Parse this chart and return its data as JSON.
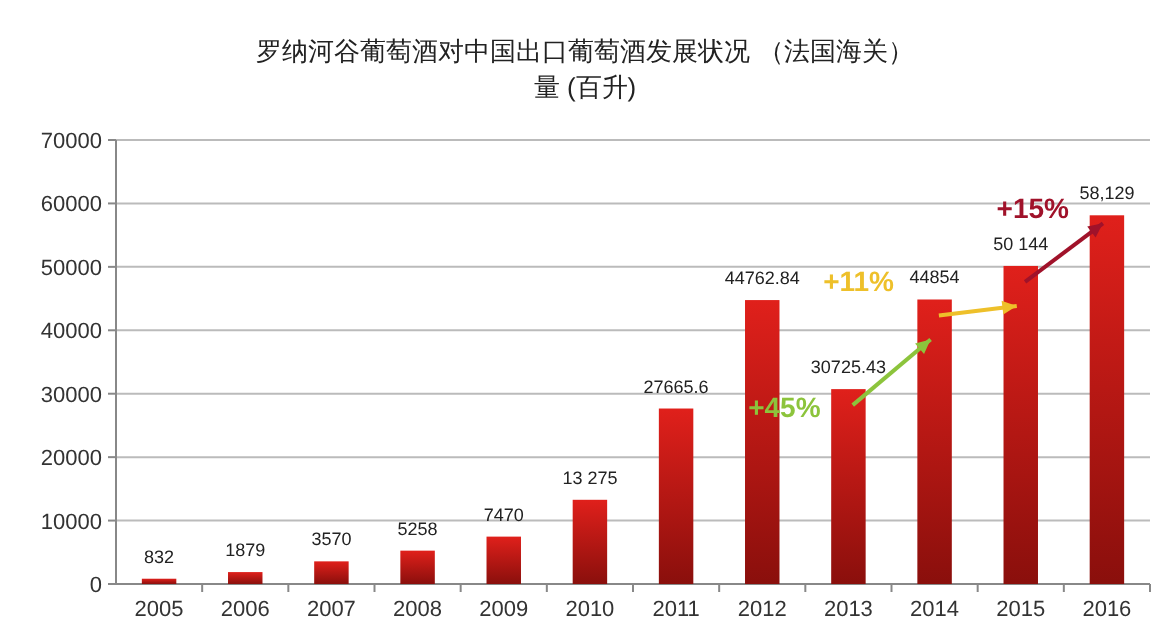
{
  "chart_data": {
    "type": "bar",
    "title": "罗纳河谷葡萄酒对中国出口葡萄酒发展状况 （法国海关）",
    "subtitle": "量 (百升)",
    "categories": [
      "2005",
      "2006",
      "2007",
      "2008",
      "2009",
      "2010",
      "2011",
      "2012",
      "2013",
      "2014",
      "2015",
      "2016"
    ],
    "values": [
      832,
      1879,
      3570,
      5258,
      7470,
      13275,
      27665.6,
      44762.84,
      30725.43,
      44854,
      50144,
      58129
    ],
    "value_labels": [
      "832",
      "1879",
      "3570",
      "5258",
      "7470",
      "13 275",
      "27665.6",
      "44762.84",
      "30725.43",
      "44854",
      "50 144",
      "58,129"
    ],
    "color": "#e0201b",
    "ylim": [
      0,
      70000
    ],
    "yticks": [
      0,
      10000,
      20000,
      30000,
      40000,
      50000,
      60000,
      70000
    ],
    "grid": "y",
    "annotations": [
      {
        "text": "+45%",
        "x": "2013",
        "y": 30725.43
      },
      {
        "text": "+11%",
        "x": "2014",
        "y": 44854
      },
      {
        "text": "+15%",
        "x": "2015",
        "y": 50144
      }
    ]
  }
}
